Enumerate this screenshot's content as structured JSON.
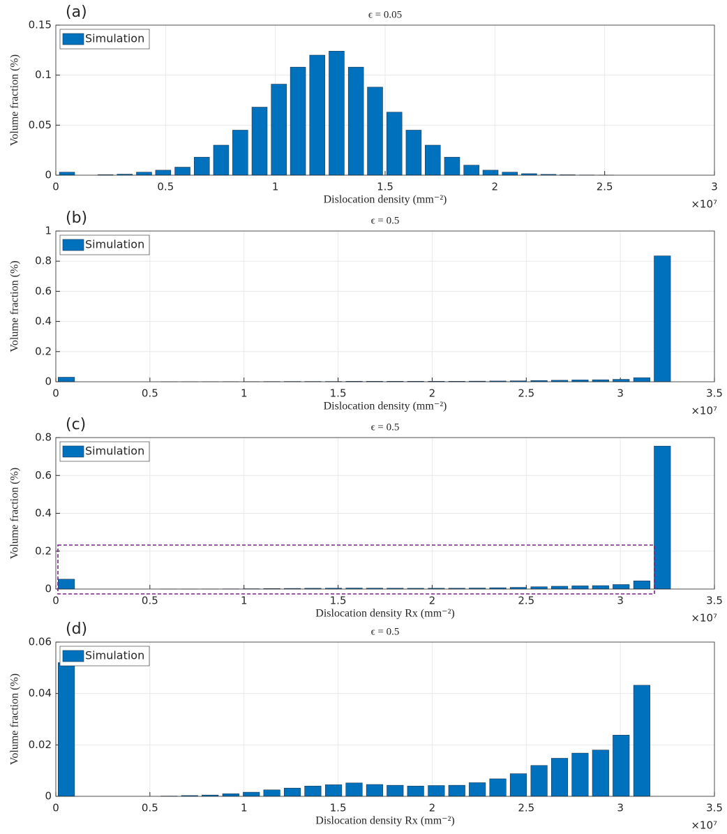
{
  "chart_data": [
    {
      "type": "bar",
      "panel_label": "(a)",
      "title": "ϵ = 0.05",
      "x_label": "Dislocation density (mm⁻²)",
      "x_exponent": "×10⁷",
      "y_label": "Volume fraction (%)",
      "x": [
        0.051,
        0.139,
        0.226,
        0.314,
        0.402,
        0.489,
        0.577,
        0.665,
        0.753,
        0.84,
        0.928,
        1.016,
        1.103,
        1.191,
        1.279,
        1.367,
        1.454,
        1.542,
        1.63,
        1.717,
        1.805,
        1.893,
        1.98,
        2.068,
        2.156,
        2.244,
        2.331,
        2.419,
        2.507
      ],
      "series": [
        {
          "name": "Simulation",
          "color": "#0072bd",
          "values": [
            0.003,
            0,
            0.0005,
            0.001,
            0.003,
            0.005,
            0.008,
            0.018,
            0.03,
            0.045,
            0.068,
            0.091,
            0.108,
            0.12,
            0.124,
            0.108,
            0.088,
            0.063,
            0.045,
            0.03,
            0.018,
            0.01,
            0.005,
            0.003,
            0.0015,
            0.0008,
            0.0004,
            0.0002,
            0.0001
          ]
        }
      ],
      "xlim": [
        0,
        3
      ],
      "ylim": [
        0,
        0.15
      ],
      "xticks": [
        0,
        0.5,
        1,
        1.5,
        2,
        2.5,
        3
      ],
      "yticks": [
        0,
        0.05,
        0.1,
        0.15
      ],
      "grid": true,
      "legend": "upper left"
    },
    {
      "type": "bar",
      "panel_label": "(b)",
      "title": "ϵ = 0.5",
      "x_label": "Dislocation density (mm⁻²)",
      "x_exponent": "×10⁷",
      "y_label": "Volume fraction (%)",
      "x": [
        0.056,
        0.165,
        0.274,
        0.384,
        0.493,
        0.602,
        0.711,
        0.82,
        0.93,
        1.039,
        1.148,
        1.257,
        1.366,
        1.476,
        1.585,
        1.694,
        1.803,
        1.912,
        2.022,
        2.131,
        2.24,
        2.349,
        2.458,
        2.568,
        2.677,
        2.786,
        2.895,
        3.004,
        3.114,
        3.223
      ],
      "series": [
        {
          "name": "Simulation",
          "color": "#0072bd",
          "values": [
            0.03,
            0,
            0,
            0,
            0,
            0.0003,
            0.0005,
            0.0007,
            0.001,
            0.001,
            0.0015,
            0.002,
            0.002,
            0.002,
            0.003,
            0.003,
            0.003,
            0.003,
            0.003,
            0.003,
            0.004,
            0.005,
            0.006,
            0.008,
            0.01,
            0.012,
            0.013,
            0.016,
            0.027,
            0.835
          ]
        }
      ],
      "xlim": [
        0,
        3.5
      ],
      "ylim": [
        0,
        1
      ],
      "xticks": [
        0,
        0.5,
        1,
        1.5,
        2,
        2.5,
        3,
        3.5
      ],
      "yticks": [
        0,
        0.2,
        0.4,
        0.6,
        0.8,
        1
      ],
      "grid": true,
      "legend": "upper left"
    },
    {
      "type": "bar",
      "panel_label": "(c)",
      "title": "ϵ = 0.5",
      "x_label": "Dislocation density Rx (mm⁻²)",
      "x_exponent": "×10⁷",
      "y_label": "Volume fraction (%)",
      "x": [
        0.056,
        0.165,
        0.274,
        0.384,
        0.493,
        0.602,
        0.711,
        0.82,
        0.93,
        1.039,
        1.148,
        1.257,
        1.366,
        1.476,
        1.585,
        1.694,
        1.803,
        1.912,
        2.022,
        2.131,
        2.24,
        2.349,
        2.458,
        2.568,
        2.677,
        2.786,
        2.895,
        3.004,
        3.114,
        3.223
      ],
      "series": [
        {
          "name": "Simulation",
          "color": "#0072bd",
          "values": [
            0.052,
            0,
            0,
            0,
            0,
            0.0001,
            0.0003,
            0.0005,
            0.001,
            0.0016,
            0.0025,
            0.0032,
            0.004,
            0.0045,
            0.0052,
            0.0046,
            0.0043,
            0.004,
            0.0042,
            0.0043,
            0.0053,
            0.0068,
            0.0088,
            0.012,
            0.0148,
            0.0168,
            0.018,
            0.0238,
            0.0432,
            0.755
          ]
        }
      ],
      "xlim": [
        0,
        3.5
      ],
      "ylim": [
        0,
        0.8
      ],
      "xticks": [
        0,
        0.5,
        1,
        1.5,
        2,
        2.5,
        3,
        3.5
      ],
      "yticks": [
        0,
        0.2,
        0.4,
        0.6,
        0.8
      ],
      "grid": true,
      "legend": "upper left"
    },
    {
      "type": "bar",
      "panel_label": "(d)",
      "title": "ϵ = 0.5",
      "x_label": "Dislocation density Rx (mm⁻²)",
      "x_exponent": "×10⁷",
      "y_label": "Volume fraction (%)",
      "x": [
        0.056,
        0.165,
        0.274,
        0.384,
        0.493,
        0.602,
        0.711,
        0.82,
        0.93,
        1.039,
        1.148,
        1.257,
        1.366,
        1.476,
        1.585,
        1.694,
        1.803,
        1.912,
        2.022,
        2.131,
        2.24,
        2.349,
        2.458,
        2.568,
        2.677,
        2.786,
        2.895,
        3.004,
        3.114
      ],
      "series": [
        {
          "name": "Simulation",
          "color": "#0072bd",
          "values": [
            0.052,
            0,
            0,
            0,
            0,
            0.0001,
            0.0003,
            0.0005,
            0.001,
            0.0016,
            0.0025,
            0.0032,
            0.004,
            0.0045,
            0.0052,
            0.0046,
            0.0043,
            0.004,
            0.0042,
            0.0043,
            0.0053,
            0.0068,
            0.0088,
            0.012,
            0.0148,
            0.0168,
            0.018,
            0.0238,
            0.0432
          ]
        }
      ],
      "xlim": [
        0,
        3.5
      ],
      "ylim": [
        0,
        0.06
      ],
      "xticks": [
        0,
        0.5,
        1,
        1.5,
        2,
        2.5,
        3,
        3.5
      ],
      "yticks": [
        0,
        0.02,
        0.04,
        0.06
      ],
      "grid": true,
      "legend": "upper left"
    }
  ]
}
